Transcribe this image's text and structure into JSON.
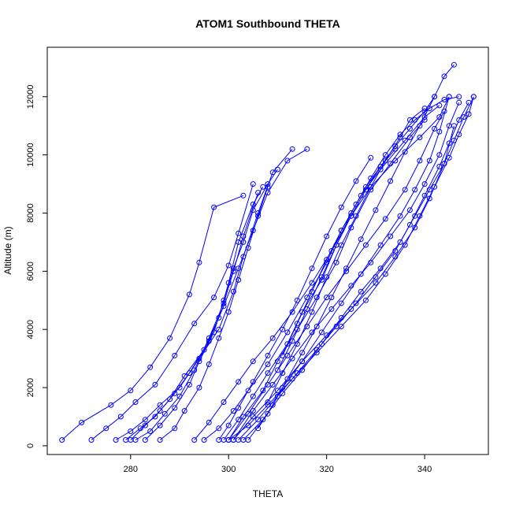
{
  "chart_data": {
    "type": "line",
    "title": "ATOM1 Southbound THETA",
    "xlabel": "THETA",
    "ylabel": "Altitude (m)",
    "xlim": [
      263,
      353
    ],
    "ylim": [
      -300,
      13700
    ],
    "x_ticks": [
      280,
      300,
      320,
      340
    ],
    "y_ticks": [
      0,
      2000,
      4000,
      6000,
      8000,
      10000,
      12000
    ],
    "x_tick_labels": [
      "280",
      "300",
      "320",
      "340"
    ],
    "y_tick_labels": [
      "0",
      "2000",
      "4000",
      "6000",
      "8000",
      "10000",
      "12000"
    ],
    "grid": false,
    "legend": "none",
    "marker": "open-circle",
    "color": "#0000ff",
    "series": [
      {
        "x": [
          266,
          270,
          276,
          280,
          284,
          288,
          292,
          294,
          297,
          303
        ],
        "y": [
          200,
          800,
          1400,
          1900,
          2700,
          3700,
          5200,
          6300,
          8200,
          8600
        ]
      },
      {
        "x": [
          272,
          275,
          278,
          281,
          285,
          289,
          293,
          297,
          300,
          302,
          305
        ],
        "y": [
          200,
          600,
          1000,
          1500,
          2100,
          3100,
          4200,
          5100,
          6200,
          7300,
          9000
        ]
      },
      {
        "x": [
          277,
          280,
          283,
          286,
          290,
          294,
          298,
          301,
          303,
          306,
          309,
          313
        ],
        "y": [
          200,
          500,
          900,
          1400,
          2000,
          3000,
          4000,
          5300,
          6500,
          8000,
          9400,
          10200
        ]
      },
      {
        "x": [
          279,
          282,
          285,
          288,
          291,
          295,
          298,
          300,
          302,
          305,
          307
        ],
        "y": [
          200,
          600,
          1000,
          1600,
          2400,
          3300,
          4400,
          5600,
          7000,
          8300,
          8900
        ]
      },
      {
        "x": [
          280,
          283,
          286,
          289,
          292,
          296,
          299,
          302,
          305,
          308,
          312,
          316
        ],
        "y": [
          200,
          700,
          1200,
          1800,
          2500,
          3600,
          4800,
          6100,
          7400,
          8700,
          9800,
          10200
        ]
      },
      {
        "x": [
          281,
          284,
          287,
          290,
          293,
          296,
          299,
          301,
          303,
          306
        ],
        "y": [
          200,
          500,
          1100,
          1700,
          2600,
          3700,
          4900,
          6000,
          7200,
          8700
        ]
      },
      {
        "x": [
          283,
          286,
          289,
          292,
          294,
          297,
          299,
          301,
          303,
          305,
          308,
          310
        ],
        "y": [
          200,
          700,
          1300,
          2100,
          2900,
          3900,
          5000,
          6100,
          7000,
          8100,
          9000,
          9500
        ]
      },
      {
        "x": [
          286,
          289,
          291,
          294,
          296,
          298,
          300,
          302,
          304,
          306,
          308
        ],
        "y": [
          200,
          600,
          1200,
          2000,
          2800,
          3700,
          4600,
          5700,
          6800,
          7900,
          8900
        ]
      },
      {
        "x": [
          293,
          296,
          299,
          302,
          305,
          309,
          313,
          317,
          321,
          325,
          329,
          334,
          339,
          343,
          345
        ],
        "y": [
          200,
          800,
          1500,
          2200,
          2900,
          3700,
          4600,
          5600,
          6700,
          7900,
          8900,
          9800,
          10600,
          11300,
          12000
        ]
      },
      {
        "x": [
          295,
          298,
          301,
          304,
          308,
          312,
          316,
          320,
          323,
          327,
          331,
          336,
          340,
          343
        ],
        "y": [
          200,
          600,
          1200,
          1900,
          2800,
          3900,
          5100,
          6300,
          7400,
          8600,
          9500,
          10500,
          11300,
          11700
        ]
      },
      {
        "x": [
          298,
          300,
          302,
          305,
          308,
          311,
          314,
          317,
          320,
          323,
          326,
          329
        ],
        "y": [
          200,
          700,
          1300,
          2200,
          3100,
          4000,
          5000,
          6100,
          7200,
          8200,
          9100,
          9900
        ]
      },
      {
        "x": [
          299,
          302,
          305,
          308,
          312,
          315,
          319,
          322,
          325,
          328,
          331,
          334
        ],
        "y": [
          200,
          900,
          1700,
          2500,
          3500,
          4600,
          5700,
          6900,
          8000,
          8900,
          9600,
          10200
        ]
      },
      {
        "x": [
          300,
          303,
          307,
          310,
          314,
          318,
          322,
          325,
          329,
          333,
          337,
          340
        ],
        "y": [
          200,
          1000,
          1900,
          2900,
          4000,
          5100,
          6300,
          7500,
          8800,
          9700,
          10600,
          11200
        ]
      },
      {
        "x": [
          300,
          304,
          308,
          312,
          316,
          320,
          324,
          328,
          332,
          336,
          339,
          342,
          344
        ],
        "y": [
          200,
          1100,
          2100,
          3100,
          4100,
          5100,
          6000,
          6900,
          7800,
          8800,
          9800,
          10900,
          11500
        ]
      },
      {
        "x": [
          301,
          305,
          309,
          313,
          317,
          321,
          325,
          329,
          333,
          337,
          340,
          343,
          345,
          347
        ],
        "y": [
          200,
          1200,
          2100,
          3000,
          3900,
          4700,
          5500,
          6300,
          7200,
          8100,
          9000,
          10000,
          11000,
          11800
        ]
      },
      {
        "x": [
          301,
          305,
          310,
          315,
          320,
          325,
          330,
          334,
          338,
          341,
          344,
          346
        ],
        "y": [
          200,
          1000,
          1900,
          2900,
          3800,
          4700,
          5600,
          6500,
          7500,
          8500,
          9700,
          11000
        ]
      },
      {
        "x": [
          302,
          306,
          310,
          314,
          318,
          322,
          326,
          330,
          334,
          337,
          340,
          343,
          345,
          347,
          349
        ],
        "y": [
          200,
          900,
          1700,
          2500,
          3300,
          4100,
          4900,
          5800,
          6700,
          7600,
          8600,
          9600,
          10400,
          11200,
          11800
        ]
      },
      {
        "x": [
          300,
          304,
          308,
          313,
          318,
          323,
          328,
          332,
          336,
          339,
          342,
          345,
          347,
          349,
          350
        ],
        "y": [
          200,
          700,
          1400,
          2300,
          3200,
          4100,
          5000,
          5900,
          6900,
          7900,
          8900,
          9900,
          10700,
          11400,
          12000
        ]
      },
      {
        "x": [
          303,
          307,
          311,
          315,
          319,
          323,
          327,
          331,
          335,
          338,
          341,
          344,
          346,
          348,
          350
        ],
        "y": [
          200,
          900,
          1800,
          2600,
          3500,
          4400,
          5300,
          6100,
          7000,
          7900,
          8800,
          9700,
          10500,
          11300,
          12000
        ]
      },
      {
        "x": [
          304,
          308,
          311,
          315,
          319,
          323,
          327,
          331,
          335,
          338,
          341,
          343,
          345
        ],
        "y": [
          200,
          1100,
          2000,
          2900,
          3900,
          4900,
          5900,
          6900,
          7900,
          8800,
          9800,
          10800,
          12000
        ]
      },
      {
        "x": [
          306,
          309,
          312,
          315,
          318,
          321,
          324,
          327,
          330,
          333,
          336,
          339,
          342,
          344,
          346
        ],
        "y": [
          600,
          1400,
          2300,
          3200,
          4100,
          5100,
          6100,
          7100,
          8100,
          9100,
          10100,
          11000,
          12000,
          12700,
          13100
        ]
      },
      {
        "x": [
          308,
          311,
          314,
          317,
          320,
          323,
          326,
          329,
          332,
          335,
          337,
          340
        ],
        "y": [
          1500,
          2500,
          3500,
          4600,
          5800,
          6900,
          7900,
          8900,
          9800,
          10600,
          11200,
          11600
        ]
      },
      {
        "x": [
          310,
          313,
          316,
          319,
          322,
          325,
          328,
          331,
          334,
          337,
          340,
          342
        ],
        "y": [
          2600,
          3600,
          4700,
          5800,
          6900,
          7900,
          8800,
          9600,
          10300,
          10900,
          11500,
          12000
        ]
      },
      {
        "x": [
          311,
          314,
          317,
          320,
          323,
          326,
          329,
          332,
          335,
          338,
          341,
          344,
          347
        ],
        "y": [
          3100,
          4200,
          5300,
          6400,
          7400,
          8300,
          9200,
          10000,
          10700,
          11200,
          11600,
          11900,
          12000
        ]
      }
    ]
  }
}
